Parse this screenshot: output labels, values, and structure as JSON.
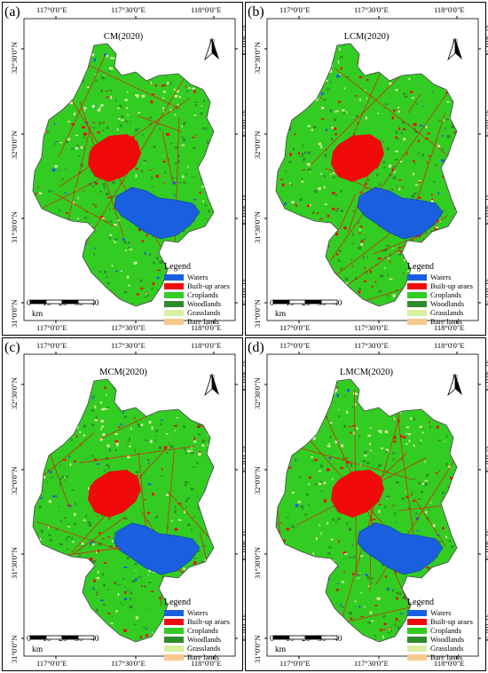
{
  "panels": [
    {
      "id": "a",
      "label": "(a)",
      "title": "CM(2020)"
    },
    {
      "id": "b",
      "label": "(b)",
      "title": "LCM(2020)"
    },
    {
      "id": "c",
      "label": "(c)",
      "title": "MCM(2020)"
    },
    {
      "id": "d",
      "label": "(d)",
      "title": "LMCM(2020)"
    }
  ],
  "axes": {
    "lon_ticks": [
      "117°0'0\"E",
      "117°30'0\"E",
      "118°0'0\"E"
    ],
    "lat_ticks": [
      "32°30'0\"N",
      "32°0'0\"N",
      "31°30'0\"N",
      "31°0'0\"N"
    ]
  },
  "north_arrow": {
    "label": "N"
  },
  "legend": {
    "title": "Legend",
    "items": [
      {
        "label": "Waters",
        "color": "#1a5fe0"
      },
      {
        "label": "Built-up araes",
        "color": "#f00a0a"
      },
      {
        "label": "Croplands",
        "color": "#33cc22"
      },
      {
        "label": "Woodlands",
        "color": "#2f8a2a"
      },
      {
        "label": "Grasslands",
        "color": "#d8f0a0"
      },
      {
        "label": "Bare lands",
        "color": "#f7c98d"
      }
    ]
  },
  "scale_bar": {
    "labels": [
      "0",
      "10",
      "20",
      "30",
      "40"
    ],
    "unit": "km"
  }
}
